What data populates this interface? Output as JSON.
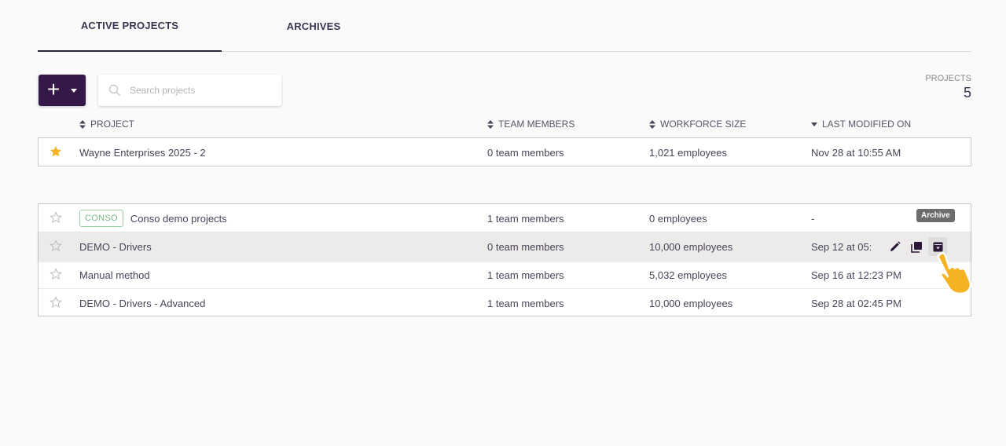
{
  "tabs": [
    {
      "label": "ACTIVE PROJECTS",
      "active": true
    },
    {
      "label": "ARCHIVES",
      "active": false
    }
  ],
  "toolbar": {
    "add_label": "+",
    "search_placeholder": "Search projects"
  },
  "counter": {
    "label": "PROJECTS",
    "value": "5"
  },
  "columns": [
    {
      "label": "PROJECT",
      "sort": "both"
    },
    {
      "label": "TEAM MEMBERS",
      "sort": "both"
    },
    {
      "label": "WORKFORCE SIZE",
      "sort": "both"
    },
    {
      "label": "LAST MODIFIED ON",
      "sort": "desc"
    }
  ],
  "favorites": [
    {
      "name": "Wayne Enterprises 2025 - 2",
      "team": "0 team members",
      "workforce": "1,021 employees",
      "modified": "Nov 28 at 10:55 AM",
      "starred": true
    }
  ],
  "projects": [
    {
      "badge": "CONSO",
      "name": "Conso demo projects",
      "team": "1 team members",
      "workforce": "0 employees",
      "modified": "-",
      "starred": false
    },
    {
      "name": "DEMO - Drivers",
      "team": "0 team members",
      "workforce": "10,000 employees",
      "modified": "Sep 12 at 05:",
      "starred": false,
      "hovered": true
    },
    {
      "name": "Manual method",
      "team": "1 team members",
      "workforce": "5,032 employees",
      "modified": "Sep 16 at 12:23 PM",
      "starred": false
    },
    {
      "name": "DEMO - Drivers - Advanced",
      "team": "1 team members",
      "workforce": "10,000 employees",
      "modified": "Sep 28 at 02:45 PM",
      "starred": false
    }
  ],
  "row_actions": {
    "icons": [
      "edit-icon",
      "duplicate-icon",
      "archive-icon"
    ],
    "tooltip": "Archive"
  },
  "colors": {
    "primary": "#341847",
    "star": "#f5b324",
    "badge": "#78b886",
    "cursor": "#f5b324"
  }
}
